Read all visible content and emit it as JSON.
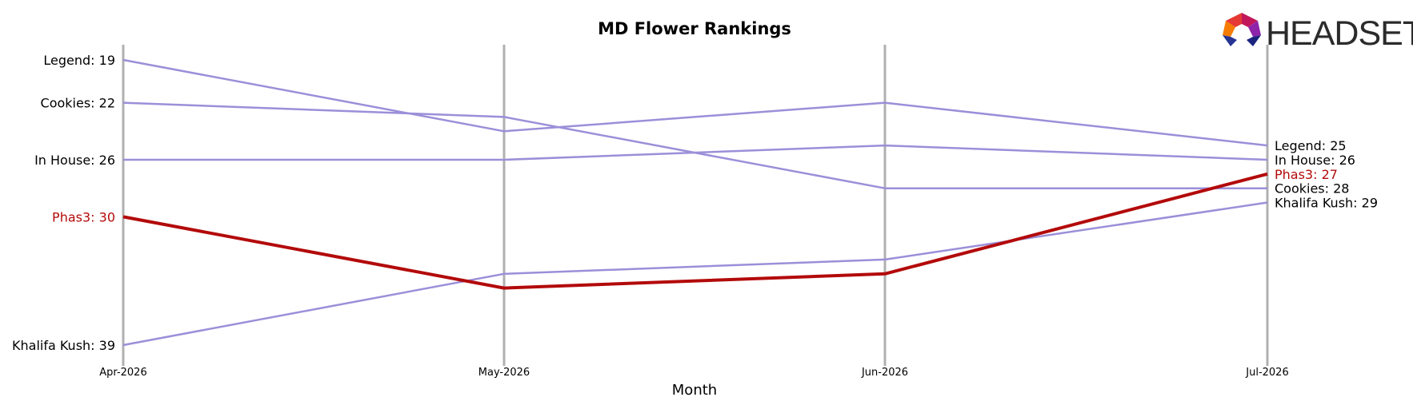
{
  "chart_data": {
    "type": "line",
    "title": "MD Flower Rankings",
    "xlabel": "Month",
    "ylabel": "",
    "categories": [
      "Apr-2026",
      "May-2026",
      "Jun-2026",
      "Jul-2026"
    ],
    "y_axis": "rank, inverted (1 at top)",
    "series": [
      {
        "name": "Legend",
        "values": [
          19,
          24,
          22,
          25
        ],
        "color": "#9b8fd9",
        "highlight": false
      },
      {
        "name": "Cookies",
        "values": [
          22,
          23,
          28,
          28
        ],
        "color": "#9b8fd9",
        "highlight": false
      },
      {
        "name": "In House",
        "values": [
          26,
          26,
          25,
          26
        ],
        "color": "#9b8fd9",
        "highlight": false
      },
      {
        "name": "Phas3",
        "values": [
          30,
          35,
          34,
          27
        ],
        "color": "#b30a0a",
        "highlight": true
      },
      {
        "name": "Khalifa Kush",
        "values": [
          39,
          34,
          33,
          29
        ],
        "color": "#9b8fd9",
        "highlight": false
      }
    ],
    "start_labels": [
      "Legend: 19",
      "Cookies: 22",
      "In House: 26",
      "Phas3: 30",
      "Khalifa Kush: 39"
    ],
    "end_labels": [
      "Legend: 25",
      "In House: 26",
      "Phas3: 27",
      "Cookies: 28",
      "Khalifa Kush: 29"
    ],
    "grid": "vertical lines at each month",
    "colors": {
      "highlight": "#b30a0a",
      "others": "#9b8fd9",
      "gridline": "#b0b0b0"
    }
  },
  "logo": {
    "text": "HEADSET"
  }
}
